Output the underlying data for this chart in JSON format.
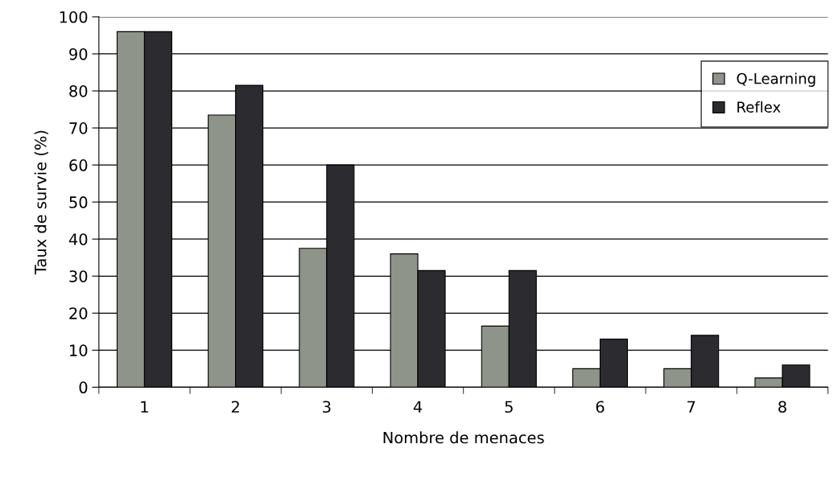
{
  "chart_data": {
    "type": "bar",
    "xlabel": "Nombre de menaces",
    "ylabel": "Taux de survie (%)",
    "categories": [
      "1",
      "2",
      "3",
      "4",
      "5",
      "6",
      "7",
      "8"
    ],
    "series": [
      {
        "name": "Q-Learning",
        "color": "#8e948a",
        "values": [
          96,
          73.5,
          37.5,
          36,
          16.5,
          5,
          5,
          2.5
        ]
      },
      {
        "name": "Reflex",
        "color": "#2b2b30",
        "values": [
          96,
          81.5,
          60,
          31.5,
          31.5,
          13,
          14,
          6
        ]
      }
    ],
    "ylim": [
      0,
      100
    ],
    "yticks": [
      0,
      10,
      20,
      30,
      40,
      50,
      60,
      70,
      80,
      90,
      100
    ],
    "grid": "y",
    "legend": "top right"
  }
}
